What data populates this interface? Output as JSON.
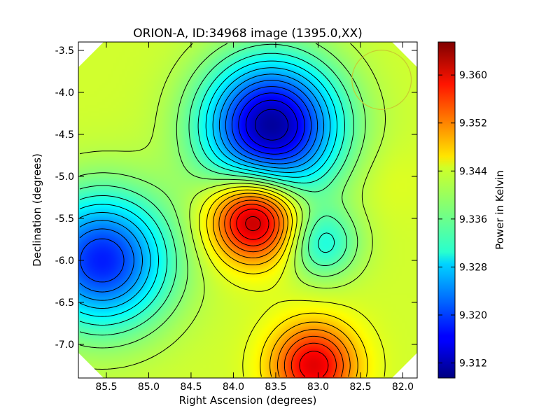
{
  "chart_data": {
    "type": "heatmap",
    "title": "ORION-A, ID:34968 image (1395.0,XX)",
    "xlabel": "Right Ascension (degrees)",
    "ylabel": "Declination (degrees)",
    "x_ticks": [
      "85.5",
      "85.0",
      "84.5",
      "84.0",
      "83.5",
      "83.0",
      "82.5",
      "82.0"
    ],
    "y_ticks": [
      "-3.5",
      "-4.0",
      "-4.5",
      "-5.0",
      "-5.5",
      "-6.0",
      "-6.5",
      "-7.0"
    ],
    "x_tick_values": [
      85.5,
      85.0,
      84.5,
      84.0,
      83.5,
      83.0,
      82.5,
      82.0
    ],
    "y_tick_values": [
      -3.5,
      -4.0,
      -4.5,
      -5.0,
      -5.5,
      -6.0,
      -6.5,
      -7.0
    ],
    "xlim": [
      85.83,
      81.83
    ],
    "ylim": [
      -7.4,
      -3.4
    ],
    "x_inverted": true,
    "colormap": "jet",
    "contours": true,
    "grid": false,
    "colorbar": {
      "label": "Power in Kelvin",
      "ticks": [
        "9.360",
        "9.352",
        "9.344",
        "9.336",
        "9.328",
        "9.320",
        "9.312"
      ],
      "tick_values": [
        9.36,
        9.352,
        9.344,
        9.336,
        9.328,
        9.32,
        9.312
      ],
      "range": [
        9.3095,
        9.3655
      ]
    },
    "features": [
      {
        "type": "min",
        "ra": 83.55,
        "dec": -4.4,
        "value": 9.311
      },
      {
        "type": "min",
        "ra": 85.55,
        "dec": -6.0,
        "value": 9.318
      },
      {
        "type": "max",
        "ra": 83.75,
        "dec": -5.5,
        "value": 9.365
      },
      {
        "type": "max",
        "ra": 83.05,
        "dec": -7.25,
        "value": 9.36
      },
      {
        "type": "local-min",
        "ra": 82.95,
        "dec": -5.8,
        "value": 9.332
      },
      {
        "type": "local-max",
        "ra": 82.15,
        "dec": -5.05,
        "value": 9.343
      }
    ],
    "beam_circle": {
      "ra": 82.25,
      "dec": -3.85,
      "radius_deg": 0.35,
      "color": "#c8c832"
    }
  }
}
